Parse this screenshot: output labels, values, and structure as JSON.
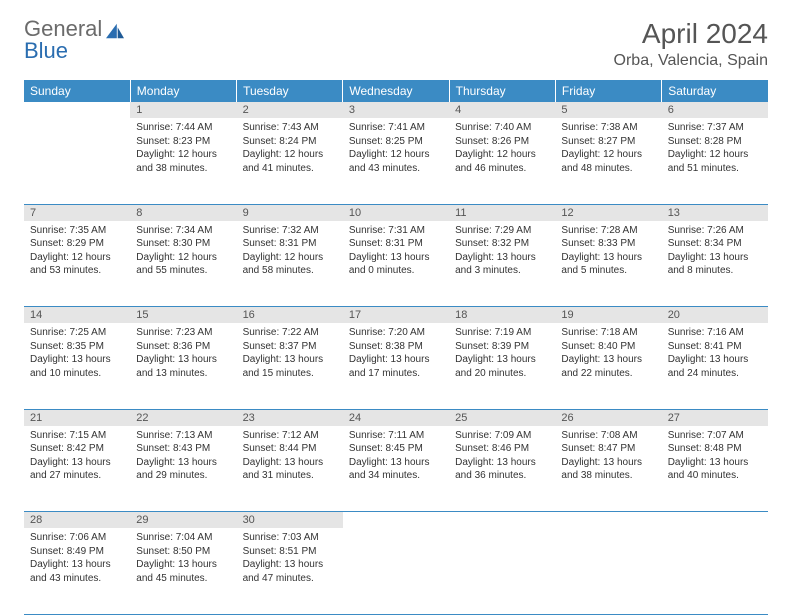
{
  "logo": {
    "part1": "General",
    "part2": "Blue"
  },
  "title": "April 2024",
  "location": "Orba, Valencia, Spain",
  "colors": {
    "header_bg": "#3b8bc4",
    "header_fg": "#ffffff",
    "daynum_bg": "#e5e5e5",
    "daynum_fg": "#555555",
    "cell_border": "#3b8bc4",
    "logo_gray": "#6b6b6b",
    "logo_blue": "#2a6db0"
  },
  "weekdays": [
    "Sunday",
    "Monday",
    "Tuesday",
    "Wednesday",
    "Thursday",
    "Friday",
    "Saturday"
  ],
  "weeks": [
    [
      {
        "day": "",
        "lines": [
          "",
          "",
          "",
          ""
        ]
      },
      {
        "day": "1",
        "lines": [
          "Sunrise: 7:44 AM",
          "Sunset: 8:23 PM",
          "Daylight: 12 hours",
          "and 38 minutes."
        ]
      },
      {
        "day": "2",
        "lines": [
          "Sunrise: 7:43 AM",
          "Sunset: 8:24 PM",
          "Daylight: 12 hours",
          "and 41 minutes."
        ]
      },
      {
        "day": "3",
        "lines": [
          "Sunrise: 7:41 AM",
          "Sunset: 8:25 PM",
          "Daylight: 12 hours",
          "and 43 minutes."
        ]
      },
      {
        "day": "4",
        "lines": [
          "Sunrise: 7:40 AM",
          "Sunset: 8:26 PM",
          "Daylight: 12 hours",
          "and 46 minutes."
        ]
      },
      {
        "day": "5",
        "lines": [
          "Sunrise: 7:38 AM",
          "Sunset: 8:27 PM",
          "Daylight: 12 hours",
          "and 48 minutes."
        ]
      },
      {
        "day": "6",
        "lines": [
          "Sunrise: 7:37 AM",
          "Sunset: 8:28 PM",
          "Daylight: 12 hours",
          "and 51 minutes."
        ]
      }
    ],
    [
      {
        "day": "7",
        "lines": [
          "Sunrise: 7:35 AM",
          "Sunset: 8:29 PM",
          "Daylight: 12 hours",
          "and 53 minutes."
        ]
      },
      {
        "day": "8",
        "lines": [
          "Sunrise: 7:34 AM",
          "Sunset: 8:30 PM",
          "Daylight: 12 hours",
          "and 55 minutes."
        ]
      },
      {
        "day": "9",
        "lines": [
          "Sunrise: 7:32 AM",
          "Sunset: 8:31 PM",
          "Daylight: 12 hours",
          "and 58 minutes."
        ]
      },
      {
        "day": "10",
        "lines": [
          "Sunrise: 7:31 AM",
          "Sunset: 8:31 PM",
          "Daylight: 13 hours",
          "and 0 minutes."
        ]
      },
      {
        "day": "11",
        "lines": [
          "Sunrise: 7:29 AM",
          "Sunset: 8:32 PM",
          "Daylight: 13 hours",
          "and 3 minutes."
        ]
      },
      {
        "day": "12",
        "lines": [
          "Sunrise: 7:28 AM",
          "Sunset: 8:33 PM",
          "Daylight: 13 hours",
          "and 5 minutes."
        ]
      },
      {
        "day": "13",
        "lines": [
          "Sunrise: 7:26 AM",
          "Sunset: 8:34 PM",
          "Daylight: 13 hours",
          "and 8 minutes."
        ]
      }
    ],
    [
      {
        "day": "14",
        "lines": [
          "Sunrise: 7:25 AM",
          "Sunset: 8:35 PM",
          "Daylight: 13 hours",
          "and 10 minutes."
        ]
      },
      {
        "day": "15",
        "lines": [
          "Sunrise: 7:23 AM",
          "Sunset: 8:36 PM",
          "Daylight: 13 hours",
          "and 13 minutes."
        ]
      },
      {
        "day": "16",
        "lines": [
          "Sunrise: 7:22 AM",
          "Sunset: 8:37 PM",
          "Daylight: 13 hours",
          "and 15 minutes."
        ]
      },
      {
        "day": "17",
        "lines": [
          "Sunrise: 7:20 AM",
          "Sunset: 8:38 PM",
          "Daylight: 13 hours",
          "and 17 minutes."
        ]
      },
      {
        "day": "18",
        "lines": [
          "Sunrise: 7:19 AM",
          "Sunset: 8:39 PM",
          "Daylight: 13 hours",
          "and 20 minutes."
        ]
      },
      {
        "day": "19",
        "lines": [
          "Sunrise: 7:18 AM",
          "Sunset: 8:40 PM",
          "Daylight: 13 hours",
          "and 22 minutes."
        ]
      },
      {
        "day": "20",
        "lines": [
          "Sunrise: 7:16 AM",
          "Sunset: 8:41 PM",
          "Daylight: 13 hours",
          "and 24 minutes."
        ]
      }
    ],
    [
      {
        "day": "21",
        "lines": [
          "Sunrise: 7:15 AM",
          "Sunset: 8:42 PM",
          "Daylight: 13 hours",
          "and 27 minutes."
        ]
      },
      {
        "day": "22",
        "lines": [
          "Sunrise: 7:13 AM",
          "Sunset: 8:43 PM",
          "Daylight: 13 hours",
          "and 29 minutes."
        ]
      },
      {
        "day": "23",
        "lines": [
          "Sunrise: 7:12 AM",
          "Sunset: 8:44 PM",
          "Daylight: 13 hours",
          "and 31 minutes."
        ]
      },
      {
        "day": "24",
        "lines": [
          "Sunrise: 7:11 AM",
          "Sunset: 8:45 PM",
          "Daylight: 13 hours",
          "and 34 minutes."
        ]
      },
      {
        "day": "25",
        "lines": [
          "Sunrise: 7:09 AM",
          "Sunset: 8:46 PM",
          "Daylight: 13 hours",
          "and 36 minutes."
        ]
      },
      {
        "day": "26",
        "lines": [
          "Sunrise: 7:08 AM",
          "Sunset: 8:47 PM",
          "Daylight: 13 hours",
          "and 38 minutes."
        ]
      },
      {
        "day": "27",
        "lines": [
          "Sunrise: 7:07 AM",
          "Sunset: 8:48 PM",
          "Daylight: 13 hours",
          "and 40 minutes."
        ]
      }
    ],
    [
      {
        "day": "28",
        "lines": [
          "Sunrise: 7:06 AM",
          "Sunset: 8:49 PM",
          "Daylight: 13 hours",
          "and 43 minutes."
        ]
      },
      {
        "day": "29",
        "lines": [
          "Sunrise: 7:04 AM",
          "Sunset: 8:50 PM",
          "Daylight: 13 hours",
          "and 45 minutes."
        ]
      },
      {
        "day": "30",
        "lines": [
          "Sunrise: 7:03 AM",
          "Sunset: 8:51 PM",
          "Daylight: 13 hours",
          "and 47 minutes."
        ]
      },
      {
        "day": "",
        "lines": [
          "",
          "",
          "",
          ""
        ]
      },
      {
        "day": "",
        "lines": [
          "",
          "",
          "",
          ""
        ]
      },
      {
        "day": "",
        "lines": [
          "",
          "",
          "",
          ""
        ]
      },
      {
        "day": "",
        "lines": [
          "",
          "",
          "",
          ""
        ]
      }
    ]
  ]
}
